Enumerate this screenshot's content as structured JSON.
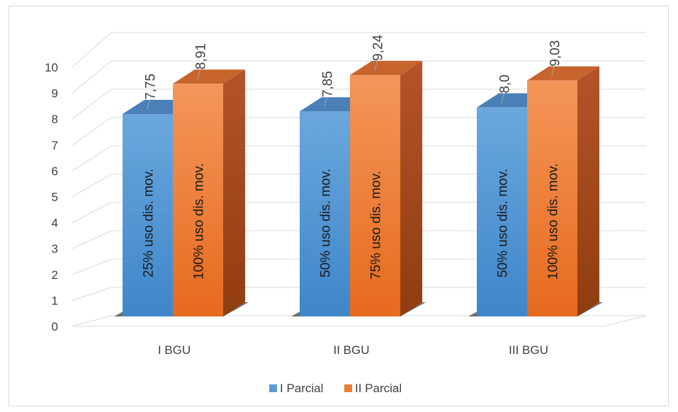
{
  "chart_data": {
    "type": "bar",
    "style": "3d-clustered-column",
    "categories": [
      "I BGU",
      "II BGU",
      "III BGU"
    ],
    "series": [
      {
        "name": "I Parcial",
        "color": "#5b9bd5",
        "values": [
          7.75,
          7.85,
          8.0
        ],
        "data_labels": [
          "7,75",
          "7,85",
          "8,0"
        ],
        "bar_labels": [
          "25% uso dis. mov.",
          "50% uso dis. mov.",
          "50% uso dis. mov."
        ]
      },
      {
        "name": "II Parcial",
        "color": "#ed7d31",
        "values": [
          8.91,
          9.24,
          9.03
        ],
        "data_labels": [
          "8,91",
          "9,24",
          "9,03"
        ],
        "bar_labels": [
          "100% uso dis. mov.",
          "75% uso dis. mov.",
          "100% uso  dis. mov."
        ]
      }
    ],
    "y_ticks": [
      "0",
      "1",
      "2",
      "3",
      "4",
      "5",
      "6",
      "7",
      "8",
      "9",
      "10"
    ],
    "ylim": [
      0,
      10
    ],
    "title": "",
    "xlabel": "",
    "ylabel": "",
    "grid": true,
    "legend_position": "bottom"
  }
}
